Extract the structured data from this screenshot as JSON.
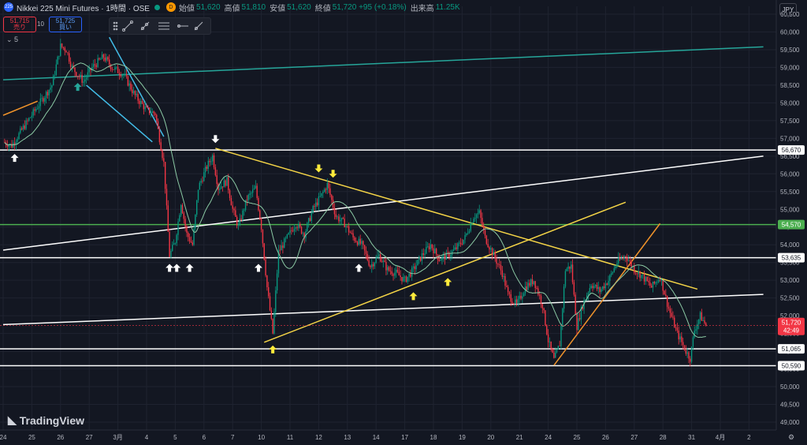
{
  "header": {
    "symbol_badge": "225",
    "title": "Nikkei 225 Mini Futures · 1時間 · OSE",
    "badge_d": "D",
    "open_label": "始値",
    "open": "51,620",
    "high_label": "高値",
    "high": "51,810",
    "low_label": "安値",
    "low": "51,620",
    "close_label": "終値",
    "close": "51,720 +95 (+0.18%)",
    "volume_label": "出来高",
    "volume": "11.25K",
    "currency": "JPY"
  },
  "trade": {
    "sell_price": "51,715",
    "sell_label": "売り",
    "spread": "10",
    "buy_price": "51,725",
    "buy_label": "買い"
  },
  "indicator_toggle": "5",
  "brand": "TradingView",
  "colors": {
    "background": "#131722",
    "up": "#089981",
    "down": "#f23645",
    "ma": "#8bc9a4",
    "teal_line": "#26a69a",
    "yellow_line": "#f5d547",
    "orange_line": "#f0932b",
    "blue_line": "#42bde8",
    "white_line": "#ffffff",
    "green_level": "#4caf50"
  },
  "chart_data": {
    "type": "candlestick",
    "y_axis": {
      "min": 49000,
      "max": 60500,
      "ticks": [
        "49,000",
        "49,500",
        "50,000",
        "50,500",
        "51,000",
        "51,500",
        "52,000",
        "52,500",
        "53,000",
        "53,500",
        "54,000",
        "54,500",
        "55,000",
        "55,500",
        "56,000",
        "56,500",
        "57,000",
        "57,500",
        "58,000",
        "58,500",
        "59,000",
        "59,500",
        "60,000",
        "60,500"
      ]
    },
    "x_axis": {
      "labels": [
        "24",
        "25",
        "26",
        "27",
        "3月",
        "4",
        "5",
        "6",
        "7",
        "10",
        "11",
        "12",
        "13",
        "14",
        "17",
        "18",
        "19",
        "20",
        "21",
        "24",
        "25",
        "26",
        "27",
        "28",
        "31",
        "4月",
        "2"
      ]
    },
    "price_levels": [
      {
        "value": 56670,
        "label": "56,670",
        "color": "#ffffff"
      },
      {
        "value": 54570,
        "label": "54,570",
        "color": "#4caf50"
      },
      {
        "value": 53635,
        "label": "53,635",
        "color": "#ffffff"
      },
      {
        "value": 51065,
        "label": "51,065",
        "color": "#ffffff"
      },
      {
        "value": 50590,
        "label": "50,590",
        "color": "#ffffff"
      }
    ],
    "current_price": {
      "value": 51720,
      "label": "51,720",
      "countdown": "42:49"
    },
    "trendlines": [
      {
        "color": "teal",
        "from": [
          0,
          58650
        ],
        "to": [
          26.5,
          59580
        ]
      },
      {
        "color": "white",
        "from": [
          0,
          53850
        ],
        "to": [
          26.5,
          56500
        ]
      },
      {
        "color": "white",
        "from": [
          0,
          51750
        ],
        "to": [
          26.5,
          52600
        ]
      },
      {
        "color": "yellow",
        "from": [
          7.4,
          56720
        ],
        "to": [
          24.2,
          52750
        ]
      },
      {
        "color": "yellow",
        "from": [
          9.1,
          51250
        ],
        "to": [
          21.7,
          55200
        ]
      },
      {
        "color": "orange",
        "from": [
          19.2,
          50600
        ],
        "to": [
          22.9,
          54600
        ]
      },
      {
        "color": "blue",
        "from": [
          3.7,
          59850
        ],
        "to": [
          5.6,
          57050
        ]
      },
      {
        "color": "blue",
        "from": [
          2.9,
          58500
        ],
        "to": [
          5.2,
          56900
        ]
      },
      {
        "color": "orange",
        "from": [
          0,
          57650
        ],
        "to": [
          1.2,
          58050
        ]
      }
    ],
    "markers": [
      {
        "x": 0.4,
        "price": 56450,
        "dir": "up",
        "color": "white"
      },
      {
        "x": 2.6,
        "price": 58450,
        "dir": "up",
        "color": "teal"
      },
      {
        "x": 5.8,
        "price": 53350,
        "dir": "up",
        "color": "white"
      },
      {
        "x": 6.05,
        "price": 53350,
        "dir": "up",
        "color": "white"
      },
      {
        "x": 6.5,
        "price": 53350,
        "dir": "up",
        "color": "white"
      },
      {
        "x": 7.4,
        "price": 56980,
        "dir": "down",
        "color": "white"
      },
      {
        "x": 8.9,
        "price": 53350,
        "dir": "up",
        "color": "white"
      },
      {
        "x": 9.4,
        "price": 51050,
        "dir": "up",
        "color": "yellow"
      },
      {
        "x": 11.0,
        "price": 56150,
        "dir": "down",
        "color": "yellow"
      },
      {
        "x": 11.5,
        "price": 56000,
        "dir": "down",
        "color": "yellow"
      },
      {
        "x": 12.4,
        "price": 53350,
        "dir": "up",
        "color": "white"
      },
      {
        "x": 14.3,
        "price": 52550,
        "dir": "up",
        "color": "yellow"
      },
      {
        "x": 15.5,
        "price": 52950,
        "dir": "up",
        "color": "yellow"
      }
    ],
    "price_path": [
      [
        0,
        56900
      ],
      [
        0.3,
        56800
      ],
      [
        0.7,
        57300
      ],
      [
        1.2,
        57900
      ],
      [
        1.7,
        58500
      ],
      [
        2.0,
        59600
      ],
      [
        2.2,
        59500
      ],
      [
        2.4,
        59000
      ],
      [
        2.8,
        58600
      ],
      [
        3.1,
        59000
      ],
      [
        3.5,
        59300
      ],
      [
        3.8,
        59000
      ],
      [
        4.2,
        58800
      ],
      [
        4.6,
        58200
      ],
      [
        5.0,
        57800
      ],
      [
        5.3,
        57700
      ],
      [
        5.6,
        56300
      ],
      [
        5.8,
        53700
      ],
      [
        6.0,
        54100
      ],
      [
        6.2,
        55200
      ],
      [
        6.4,
        54300
      ],
      [
        6.6,
        54000
      ],
      [
        6.8,
        55600
      ],
      [
        7.1,
        56200
      ],
      [
        7.3,
        56500
      ],
      [
        7.5,
        55600
      ],
      [
        7.8,
        55800
      ],
      [
        8.0,
        55000
      ],
      [
        8.2,
        54500
      ],
      [
        8.5,
        55300
      ],
      [
        8.8,
        55600
      ],
      [
        9.0,
        54500
      ],
      [
        9.2,
        52800
      ],
      [
        9.4,
        51500
      ],
      [
        9.6,
        53800
      ],
      [
        9.9,
        54200
      ],
      [
        10.2,
        54600
      ],
      [
        10.5,
        54300
      ],
      [
        10.8,
        55000
      ],
      [
        11.1,
        55400
      ],
      [
        11.3,
        55700
      ],
      [
        11.6,
        54800
      ],
      [
        11.9,
        54600
      ],
      [
        12.2,
        54200
      ],
      [
        12.5,
        54000
      ],
      [
        12.8,
        53400
      ],
      [
        13.1,
        53700
      ],
      [
        13.4,
        53300
      ],
      [
        13.7,
        53200
      ],
      [
        14.0,
        53000
      ],
      [
        14.3,
        53300
      ],
      [
        14.6,
        53700
      ],
      [
        14.9,
        54000
      ],
      [
        15.2,
        53600
      ],
      [
        15.5,
        53700
      ],
      [
        15.8,
        53900
      ],
      [
        16.1,
        54200
      ],
      [
        16.4,
        54800
      ],
      [
        16.6,
        54900
      ],
      [
        16.8,
        54200
      ],
      [
        17.1,
        53700
      ],
      [
        17.4,
        53200
      ],
      [
        17.6,
        52600
      ],
      [
        17.9,
        52300
      ],
      [
        18.2,
        52800
      ],
      [
        18.5,
        53000
      ],
      [
        18.8,
        52300
      ],
      [
        19.0,
        51300
      ],
      [
        19.2,
        50750
      ],
      [
        19.4,
        51200
      ],
      [
        19.6,
        53300
      ],
      [
        19.8,
        53400
      ],
      [
        20.0,
        51700
      ],
      [
        20.2,
        52300
      ],
      [
        20.5,
        52900
      ],
      [
        20.8,
        52700
      ],
      [
        21.1,
        53000
      ],
      [
        21.4,
        53500
      ],
      [
        21.7,
        53700
      ],
      [
        22.0,
        53300
      ],
      [
        22.3,
        53100
      ],
      [
        22.6,
        52800
      ],
      [
        22.9,
        53100
      ],
      [
        23.2,
        52200
      ],
      [
        23.5,
        51500
      ],
      [
        23.8,
        51000
      ],
      [
        23.95,
        50800
      ],
      [
        24.1,
        51600
      ],
      [
        24.3,
        52000
      ],
      [
        24.5,
        51720
      ]
    ]
  }
}
